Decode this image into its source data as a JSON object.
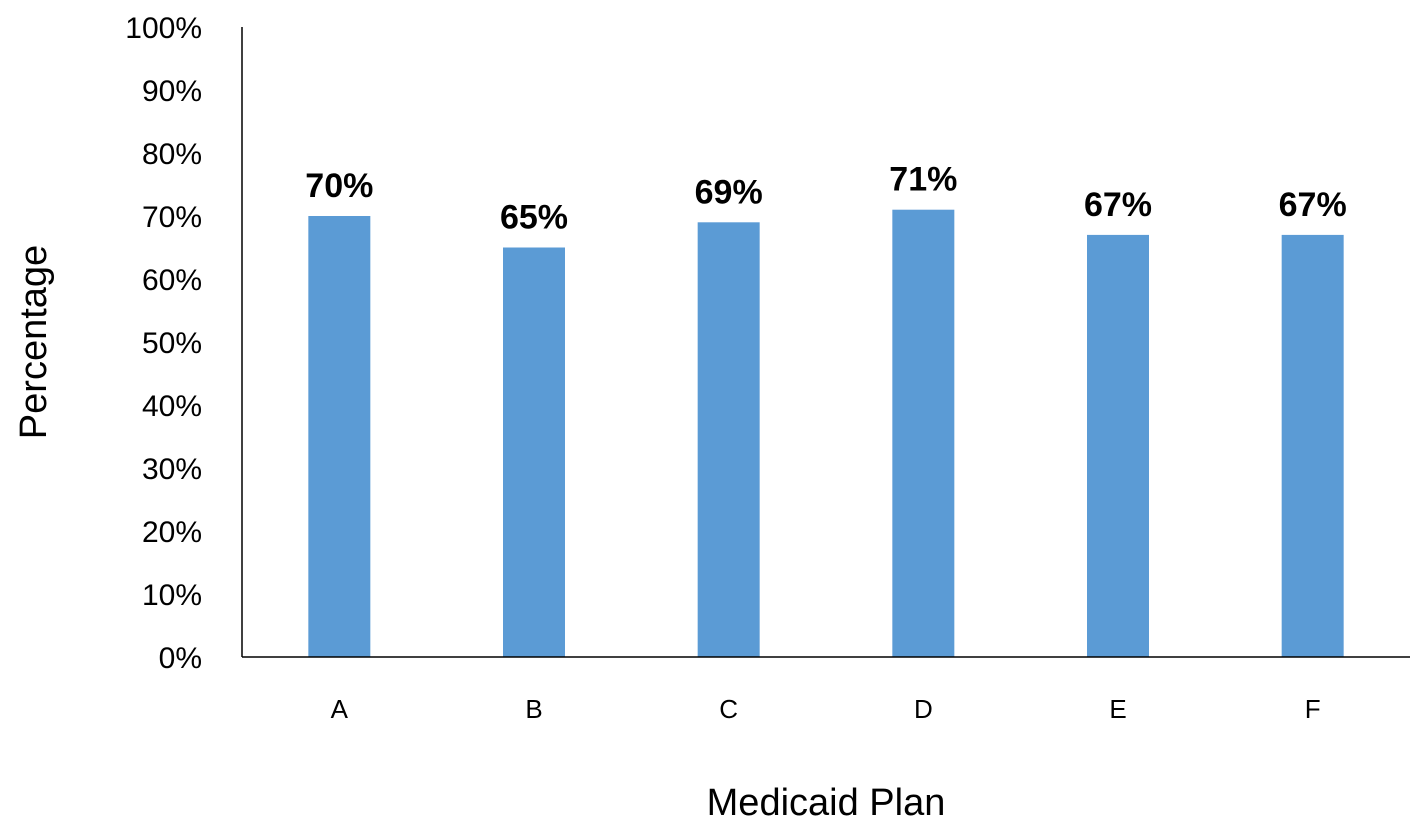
{
  "chart_data": {
    "type": "bar",
    "categories": [
      "A",
      "B",
      "C",
      "D",
      "E",
      "F"
    ],
    "values": [
      70,
      65,
      69,
      71,
      67,
      67
    ],
    "data_labels": [
      "70%",
      "65%",
      "69%",
      "71%",
      "67%",
      "67%"
    ],
    "xlabel": "Medicaid Plan",
    "ylabel": "Percentage",
    "ylim": [
      0,
      100
    ],
    "y_ticks": [
      0,
      10,
      20,
      30,
      40,
      50,
      60,
      70,
      80,
      90,
      100
    ],
    "y_tick_labels": [
      "0%",
      "10%",
      "20%",
      "30%",
      "40%",
      "50%",
      "60%",
      "70%",
      "80%",
      "90%",
      "100%"
    ],
    "grid": false,
    "legend": "none",
    "bar_color": "#5B9BD5"
  }
}
